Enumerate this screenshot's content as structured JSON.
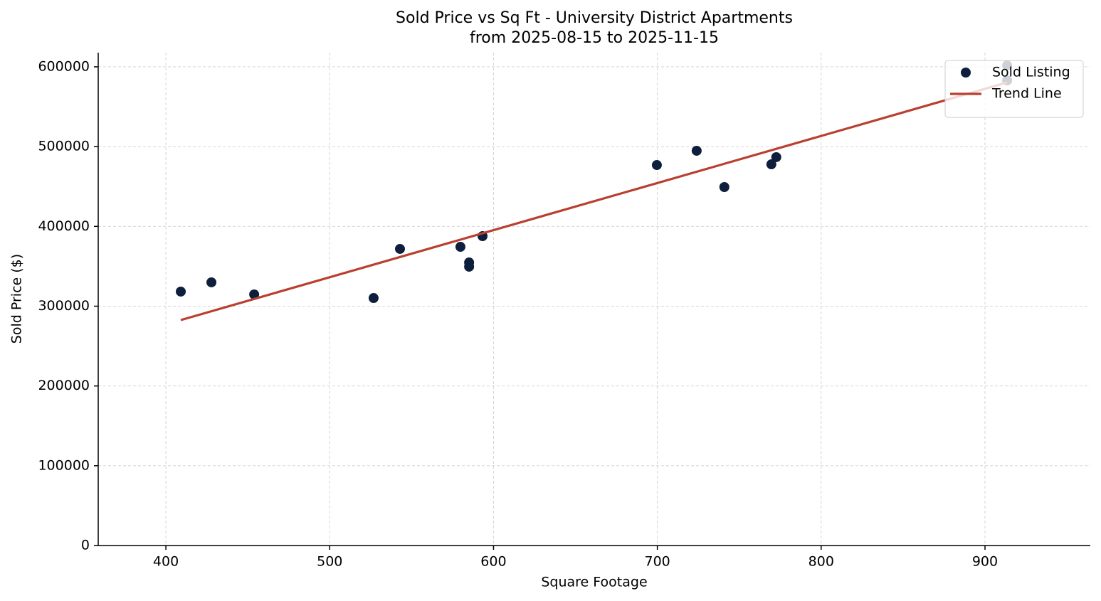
{
  "chart_data": {
    "type": "scatter",
    "title": "Sold Price vs Sq Ft - University District Apartments",
    "subtitle": "from 2025-08-15 to 2025-11-15",
    "x_label": "Square Footage",
    "y_label": "Sold Price ($)",
    "xlim": [
      358.7,
      964.3
    ],
    "ylim": [
      0,
      617800
    ],
    "xticks": [
      400,
      500,
      600,
      700,
      800,
      900
    ],
    "yticks": [
      0,
      100000,
      200000,
      300000,
      400000,
      500000,
      600000
    ],
    "grid": true,
    "legend": "upper right",
    "series": [
      {
        "name": "Sold Listing",
        "type": "scatter",
        "color": "#0d1f3c",
        "x": [
          409.1,
          427.8,
          453.9,
          526.8,
          542.9,
          579.8,
          585.1,
          585.1,
          593.3,
          699.7,
          724.0,
          740.9,
          769.6,
          772.6,
          913.5,
          913.5
        ],
        "values": [
          318300,
          329900,
          314700,
          310200,
          371800,
          374400,
          354800,
          349500,
          387800,
          476900,
          494800,
          449300,
          477800,
          486800,
          601800,
          583000
        ]
      },
      {
        "name": "Trend Line",
        "type": "line",
        "color": "#b94030",
        "x": [
          409.1,
          913.5
        ],
        "values": [
          282600,
          580400
        ]
      }
    ]
  }
}
